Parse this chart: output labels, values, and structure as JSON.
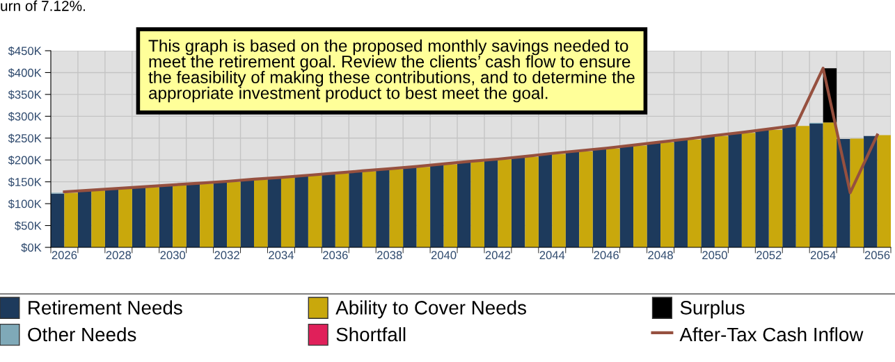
{
  "chart_data": {
    "type": "bar",
    "categories": [
      "2026",
      null,
      "2028",
      null,
      "2030",
      null,
      "2032",
      null,
      "2034",
      null,
      "2036",
      null,
      "2038",
      null,
      "2040",
      null,
      "2042",
      null,
      "2044",
      null,
      "2046",
      null,
      "2048",
      null,
      "2050",
      null,
      "2052",
      null,
      "2054",
      null,
      "2056"
    ],
    "series": [
      {
        "name": "Retirement Needs",
        "color": "#1d3a5c",
        "values": [
          123,
          129,
          133,
          137,
          141,
          145,
          149,
          154,
          158,
          163,
          168,
          173,
          178,
          183,
          189,
          195,
          200,
          206,
          213,
          219,
          225,
          232,
          239,
          246,
          254,
          261,
          269,
          277,
          283,
          248,
          255
        ]
      },
      {
        "name": "Other Needs",
        "color": "#7fa9b8",
        "base": [
          123,
          null,
          null,
          null,
          null,
          null,
          null,
          null,
          null,
          null,
          null,
          null,
          null,
          null,
          null,
          null,
          null,
          null,
          null,
          null,
          null,
          null,
          null,
          null,
          null,
          null,
          null,
          null,
          283,
          null,
          null
        ],
        "values": [
          2,
          null,
          null,
          null,
          null,
          null,
          null,
          null,
          null,
          null,
          null,
          null,
          null,
          null,
          null,
          null,
          null,
          null,
          null,
          null,
          null,
          null,
          null,
          null,
          null,
          null,
          null,
          null,
          2,
          null,
          null
        ]
      },
      {
        "name": "Ability to Cover Needs",
        "color": "#c9a80c",
        "values": [
          125,
          130,
          134,
          138,
          142,
          146,
          150,
          155,
          159,
          164,
          169,
          174,
          179,
          184,
          190,
          196,
          201,
          207,
          214,
          220,
          226,
          233,
          240,
          247,
          255,
          262,
          269,
          278,
          286,
          249,
          257
        ]
      },
      {
        "name": "Shortfall",
        "color": "#e0205a",
        "base": [
          null,
          null,
          null,
          null,
          null,
          null,
          null,
          null,
          null,
          null,
          null,
          null,
          null,
          null,
          null,
          null,
          null,
          null,
          null,
          null,
          null,
          null,
          null,
          null,
          null,
          null,
          null,
          null,
          null,
          null,
          null
        ],
        "values": [
          null,
          null,
          null,
          null,
          null,
          null,
          null,
          null,
          null,
          null,
          null,
          null,
          null,
          null,
          null,
          null,
          null,
          null,
          null,
          null,
          null,
          null,
          null,
          null,
          null,
          null,
          null,
          null,
          null,
          null,
          null
        ]
      },
      {
        "name": "Surplus",
        "color": "#000000",
        "base": [
          null,
          null,
          null,
          null,
          null,
          null,
          null,
          null,
          null,
          null,
          null,
          null,
          null,
          null,
          null,
          null,
          null,
          null,
          null,
          null,
          null,
          null,
          null,
          null,
          null,
          null,
          null,
          null,
          286,
          null,
          null
        ],
        "values": [
          null,
          null,
          null,
          null,
          null,
          null,
          null,
          null,
          null,
          null,
          null,
          null,
          null,
          null,
          null,
          null,
          null,
          null,
          null,
          null,
          null,
          null,
          null,
          null,
          null,
          null,
          null,
          null,
          124,
          null,
          null
        ]
      },
      {
        "name": "After-Tax Cash Inflow",
        "color": "#96503f",
        "type": "line",
        "values": [
          127,
          131,
          135,
          139,
          143,
          147,
          151,
          156,
          160,
          165,
          170,
          175,
          180,
          185,
          191,
          197,
          202,
          208,
          215,
          221,
          227,
          234,
          241,
          248,
          256,
          263,
          271,
          279,
          410,
          125,
          257
        ]
      }
    ],
    "ylim": [
      0,
      450
    ],
    "yticks": [
      {
        "value": 0,
        "label": "$0K"
      },
      {
        "value": 50,
        "label": "$50K"
      },
      {
        "value": 100,
        "label": "$100K"
      },
      {
        "value": 150,
        "label": "$150K"
      },
      {
        "value": 200,
        "label": "$200K"
      },
      {
        "value": 250,
        "label": "$250K"
      },
      {
        "value": 300,
        "label": "$300K"
      },
      {
        "value": 350,
        "label": "$350K"
      },
      {
        "value": 400,
        "label": "$400K"
      },
      {
        "value": 450,
        "label": "$450K"
      }
    ],
    "grid": true,
    "legend": "bottom",
    "marker": "none",
    "line_style": "solid",
    "annotations": [
      "urn of 7.12%.",
      "This graph is based on the proposed monthly savings needed to\nmeet the retirement goal. Review the clients’ cash flow to ensure\nthe feasibility of making these contributions, and to determine the\nappropriate investment product to best meet the goal."
    ]
  }
}
